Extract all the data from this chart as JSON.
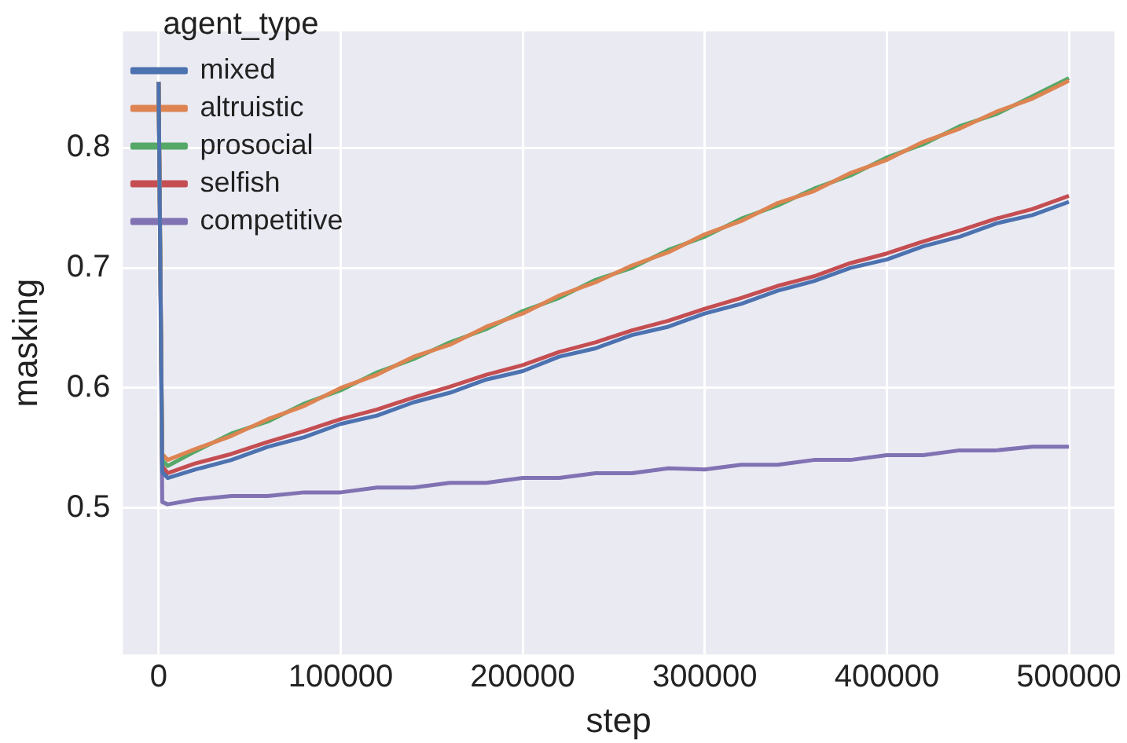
{
  "chart_data": {
    "type": "line",
    "xlabel": "step",
    "ylabel": "masking",
    "legend_title": "agent_type",
    "legend": "top left",
    "grid": true,
    "marker": "none",
    "line_style": "solid",
    "x": [
      0,
      2000,
      5000,
      20000,
      40000,
      60000,
      80000,
      100000,
      120000,
      140000,
      160000,
      180000,
      200000,
      220000,
      240000,
      260000,
      280000,
      300000,
      320000,
      340000,
      360000,
      380000,
      400000,
      420000,
      440000,
      460000,
      480000,
      500000
    ],
    "xlim": [
      -19600,
      525000
    ],
    "xticks": [
      0,
      100000,
      200000,
      300000,
      400000,
      500000
    ],
    "ylim": [
      0.378,
      0.897
    ],
    "yticks": [
      0.5,
      0.6,
      0.7,
      0.8
    ],
    "series": [
      {
        "name": "mixed",
        "color": "#4c72b0",
        "values": [
          0.855,
          0.53,
          0.525,
          0.532,
          0.54,
          0.551,
          0.559,
          0.57,
          0.577,
          0.588,
          0.596,
          0.607,
          0.614,
          0.626,
          0.633,
          0.644,
          0.651,
          0.662,
          0.67,
          0.681,
          0.689,
          0.7,
          0.707,
          0.718,
          0.726,
          0.737,
          0.744,
          0.755
        ]
      },
      {
        "name": "altruistic",
        "color": "#dd8452",
        "values": [
          0.855,
          0.545,
          0.54,
          0.549,
          0.56,
          0.574,
          0.585,
          0.6,
          0.611,
          0.626,
          0.636,
          0.651,
          0.662,
          0.677,
          0.688,
          0.702,
          0.713,
          0.728,
          0.739,
          0.754,
          0.764,
          0.779,
          0.79,
          0.805,
          0.816,
          0.83,
          0.841,
          0.856
        ]
      },
      {
        "name": "prosocial",
        "color": "#55a868",
        "values": [
          0.855,
          0.54,
          0.535,
          0.547,
          0.562,
          0.572,
          0.587,
          0.598,
          0.613,
          0.624,
          0.638,
          0.649,
          0.664,
          0.675,
          0.69,
          0.7,
          0.715,
          0.726,
          0.741,
          0.752,
          0.766,
          0.777,
          0.792,
          0.803,
          0.818,
          0.828,
          0.843,
          0.858
        ]
      },
      {
        "name": "selfish",
        "color": "#c44e52",
        "values": [
          0.855,
          0.535,
          0.529,
          0.537,
          0.545,
          0.555,
          0.564,
          0.574,
          0.582,
          0.592,
          0.601,
          0.611,
          0.619,
          0.63,
          0.638,
          0.648,
          0.656,
          0.666,
          0.675,
          0.685,
          0.693,
          0.704,
          0.712,
          0.722,
          0.731,
          0.741,
          0.749,
          0.76
        ]
      },
      {
        "name": "competitive",
        "color": "#8172b3",
        "values": [
          0.855,
          0.505,
          0.503,
          0.507,
          0.51,
          0.51,
          0.513,
          0.513,
          0.517,
          0.517,
          0.521,
          0.521,
          0.525,
          0.525,
          0.529,
          0.529,
          0.533,
          0.532,
          0.536,
          0.536,
          0.54,
          0.54,
          0.544,
          0.544,
          0.548,
          0.548,
          0.551,
          0.551
        ]
      }
    ]
  }
}
